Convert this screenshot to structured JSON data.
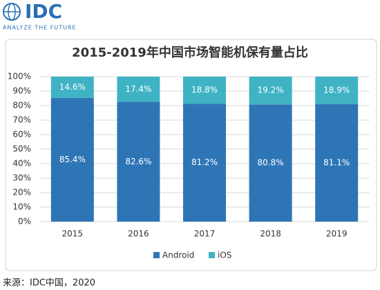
{
  "chart_data": {
    "type": "stacked-bar",
    "logo": "IDC",
    "tagline": "ANALYZE THE FUTURE",
    "title": "2015-2019年中国市场智能机保有量占比",
    "source": "来源：IDC中国，2020",
    "categories": [
      "2015",
      "2016",
      "2017",
      "2018",
      "2019"
    ],
    "series": [
      {
        "name": "Android",
        "color": "#2e75b6",
        "values": [
          85.4,
          82.6,
          81.2,
          80.8,
          81.1
        ],
        "value_labels": [
          "85.4%",
          "82.6%",
          "81.2%",
          "80.8%",
          "81.1%"
        ]
      },
      {
        "name": "iOS",
        "color": "#3fb3c4",
        "values": [
          14.6,
          17.4,
          18.8,
          19.2,
          18.9
        ],
        "value_labels": [
          "14.6%",
          "17.4%",
          "18.8%",
          "19.2%",
          "18.9%"
        ]
      }
    ],
    "ylim": [
      0,
      100
    ],
    "yticks": [
      {
        "value": 0,
        "label": "0%"
      },
      {
        "value": 10,
        "label": "10%"
      },
      {
        "value": 20,
        "label": "20%"
      },
      {
        "value": 30,
        "label": "30%"
      },
      {
        "value": 40,
        "label": "40%"
      },
      {
        "value": 50,
        "label": "50%"
      },
      {
        "value": 60,
        "label": "60%"
      },
      {
        "value": 70,
        "label": "70%"
      },
      {
        "value": 80,
        "label": "80%"
      },
      {
        "value": 90,
        "label": "90%"
      },
      {
        "value": 100,
        "label": "100%"
      }
    ],
    "grid": true,
    "legend": "bottom"
  }
}
